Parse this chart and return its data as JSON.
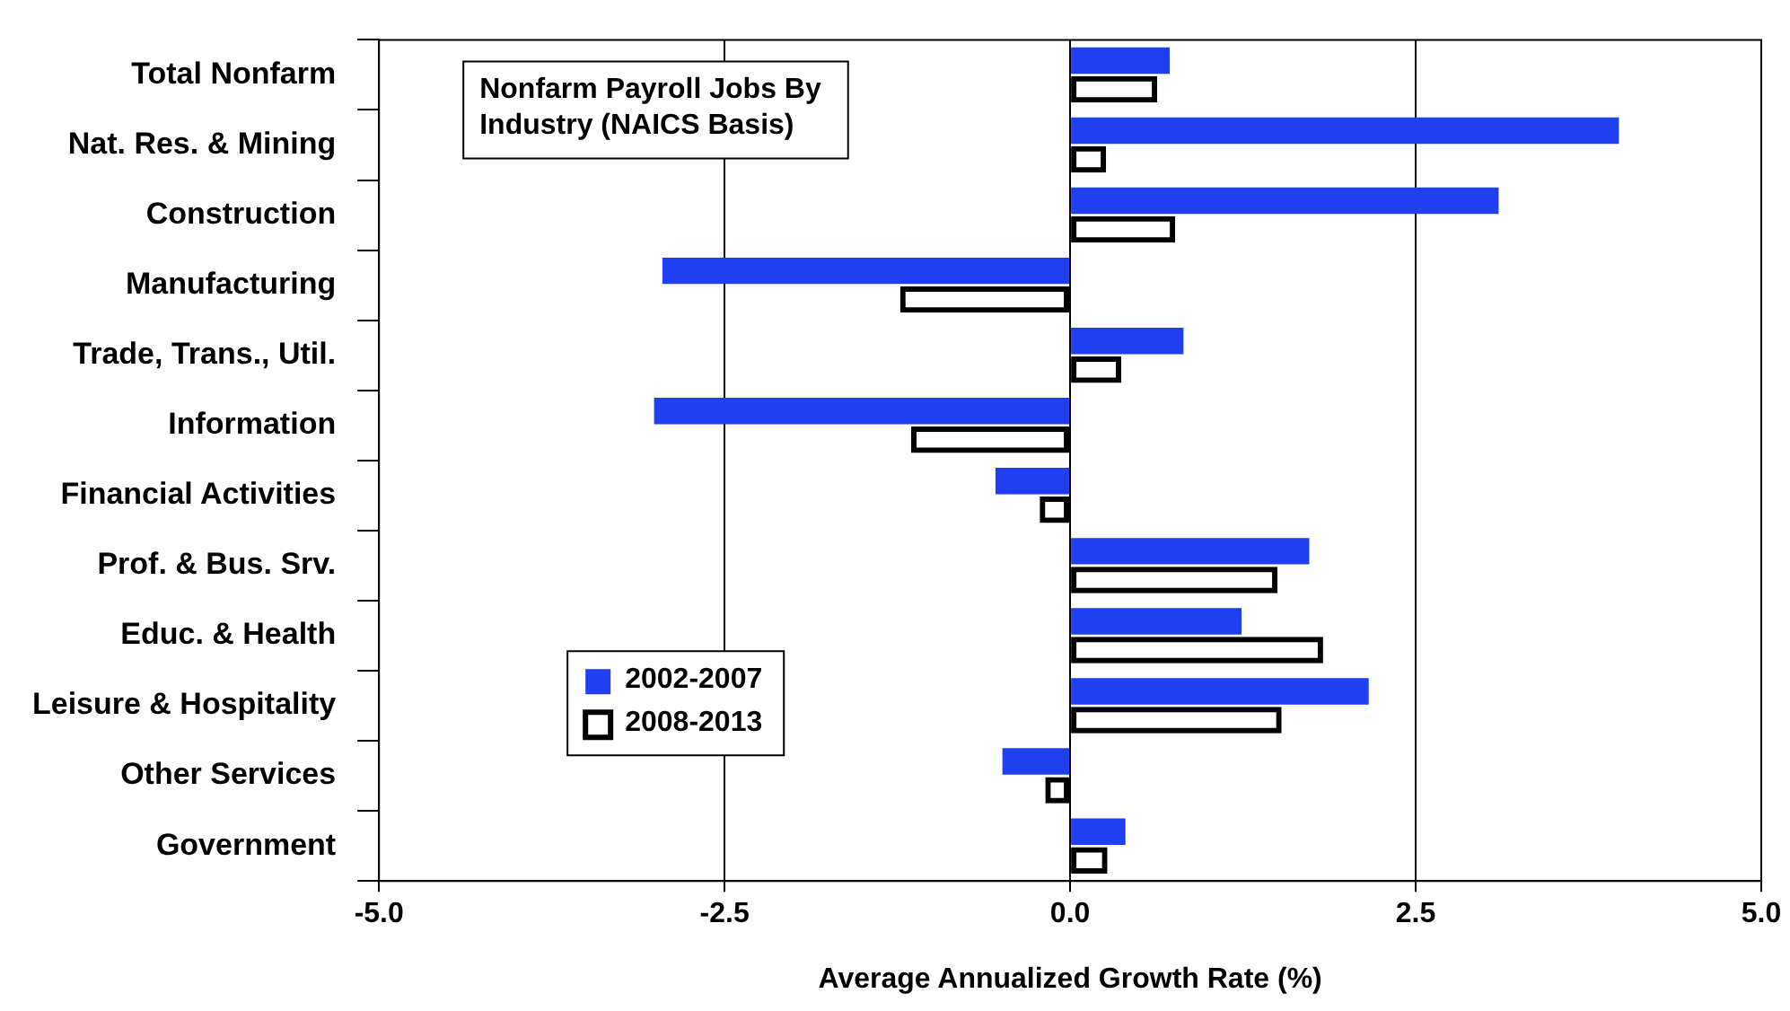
{
  "chart_data": {
    "type": "bar",
    "orientation": "horizontal",
    "title": "Nonfarm Payroll Jobs By Industry (NAICS Basis)",
    "xlabel": "Average Annualized Growth Rate (%)",
    "categories": [
      "Total Nonfarm",
      "Nat. Res. & Mining",
      "Construction",
      "Manufacturing",
      "Trade, Trans., Util.",
      "Information",
      "Financial Activities",
      "Prof. & Bus. Srv.",
      "Educ. & Health",
      "Leisure & Hospitality",
      "Other Services",
      "Government"
    ],
    "series": [
      {
        "name": "2002-2007",
        "color": "#1f3ff0",
        "values": [
          0.72,
          3.97,
          3.1,
          -2.95,
          0.82,
          -3.01,
          -0.54,
          1.73,
          1.24,
          2.16,
          -0.49,
          0.4
        ]
      },
      {
        "name": "2008-2013",
        "color": "#000000",
        "values": [
          0.63,
          0.26,
          0.76,
          -1.23,
          0.37,
          -1.15,
          -0.22,
          1.5,
          1.83,
          1.53,
          -0.18,
          0.27
        ]
      }
    ],
    "xlim": [
      -5,
      5
    ],
    "xticks": [
      {
        "value": -5,
        "label": "-5.0"
      },
      {
        "value": -2.5,
        "label": "-2.5"
      },
      {
        "value": 0,
        "label": "0.0"
      },
      {
        "value": 2.5,
        "label": "2.5"
      },
      {
        "value": 5,
        "label": "5.0"
      }
    ],
    "grid": "x",
    "legend": "bottom left"
  }
}
